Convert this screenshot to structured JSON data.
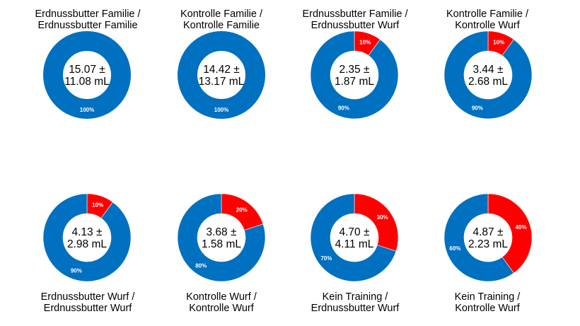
{
  "colors": {
    "blue": "#0070C0",
    "red": "#FF0000"
  },
  "chart_data": [
    {
      "type": "pie",
      "title": [
        "Erdnussbutter Familie  /",
        "Erdnussbutter Familie"
      ],
      "center": [
        "15.07 ±",
        "11.08 mL"
      ],
      "slices": [
        {
          "value": 100,
          "label": "100%",
          "color": "blue"
        }
      ]
    },
    {
      "type": "pie",
      "title": [
        "Kontrolle Familie  /",
        "Kontrolle Familie"
      ],
      "center": [
        "14.42 ±",
        "13.17 mL"
      ],
      "slices": [
        {
          "value": 100,
          "label": "100%",
          "color": "blue"
        }
      ]
    },
    {
      "type": "pie",
      "title": [
        "Erdnussbutter Familie  /",
        "Erdnussbutter Wurf"
      ],
      "center": [
        "2.35 ±",
        "1.87 mL"
      ],
      "slices": [
        {
          "value": 10,
          "label": "10%",
          "color": "red"
        },
        {
          "value": 90,
          "label": "90%",
          "color": "blue"
        }
      ]
    },
    {
      "type": "pie",
      "title": [
        "Kontrolle Familie  /",
        "Kontrolle Wurf"
      ],
      "center": [
        "3.44 ±",
        "2.68 mL"
      ],
      "slices": [
        {
          "value": 10,
          "label": "10%",
          "color": "red"
        },
        {
          "value": 90,
          "label": "90%",
          "color": "blue"
        }
      ]
    },
    {
      "type": "pie",
      "title": [
        "Erdnussbutter Wurf  /",
        "Erdnussbutter Wurf"
      ],
      "center": [
        "4.13 ±",
        "2.98 mL"
      ],
      "slices": [
        {
          "value": 10,
          "label": "10%",
          "color": "red"
        },
        {
          "value": 90,
          "label": "90%",
          "color": "blue"
        }
      ]
    },
    {
      "type": "pie",
      "title": [
        "Kontrolle Wurf  /",
        "Kontrolle Wurf"
      ],
      "center": [
        "3.68 ±",
        "1.58 mL"
      ],
      "slices": [
        {
          "value": 20,
          "label": "20%",
          "color": "red"
        },
        {
          "value": 80,
          "label": "80%",
          "color": "blue"
        }
      ]
    },
    {
      "type": "pie",
      "title": [
        "Kein Training  /",
        "Erdnussbutter Wurf"
      ],
      "center": [
        "4.70 ±",
        "4.11 mL"
      ],
      "slices": [
        {
          "value": 30,
          "label": "30%",
          "color": "red"
        },
        {
          "value": 70,
          "label": "70%",
          "color": "blue"
        }
      ]
    },
    {
      "type": "pie",
      "title": [
        "Kein Training  /",
        "Kontrolle Wurf"
      ],
      "center": [
        "4.87 ±",
        "2.23 mL"
      ],
      "slices": [
        {
          "value": 40,
          "label": "40%",
          "color": "red"
        },
        {
          "value": 60,
          "label": "60%",
          "color": "blue"
        }
      ]
    }
  ]
}
